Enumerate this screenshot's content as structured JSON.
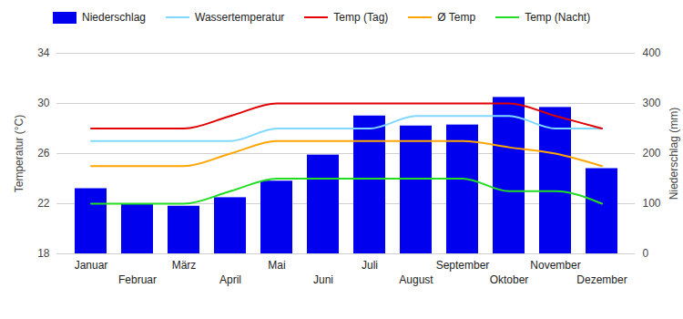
{
  "chart_data": {
    "type": "combo",
    "categories": [
      "Januar",
      "Februar",
      "März",
      "April",
      "Mai",
      "Juni",
      "Juli",
      "August",
      "September",
      "Oktober",
      "November",
      "Dezember"
    ],
    "series": [
      {
        "name": "Niederschlag",
        "type": "bar",
        "axis": "y2",
        "color": "#0000ee",
        "values": [
          130,
          100,
          95,
          112,
          145,
          197,
          275,
          255,
          257,
          312,
          292,
          170
        ]
      },
      {
        "name": "Wassertemperatur",
        "type": "line",
        "color": "#80d8ff",
        "values": [
          27,
          27,
          27,
          27,
          28,
          28,
          28,
          29,
          29,
          29,
          28,
          28
        ]
      },
      {
        "name": "Temp (Tag)",
        "type": "line",
        "color": "#e00000",
        "values": [
          28,
          28,
          28,
          29,
          30,
          30,
          30,
          30,
          30,
          30,
          29,
          28
        ]
      },
      {
        "name": "Ø Temp",
        "type": "line",
        "color": "#ffa500",
        "values": [
          25,
          25,
          25,
          26,
          27,
          27,
          27,
          27,
          27,
          26.5,
          26,
          25
        ]
      },
      {
        "name": "Temp (Nacht)",
        "type": "line",
        "color": "#22dd22",
        "values": [
          22,
          22,
          22,
          23,
          24,
          24,
          24,
          24,
          24,
          23,
          23,
          22
        ]
      }
    ],
    "ylabel": "Temperatur (°C)",
    "y2label": "Niederschlag (mm)",
    "ylim": [
      18,
      34
    ],
    "yticks": [
      18,
      22,
      26,
      30,
      34
    ],
    "y2lim": [
      0,
      400
    ],
    "y2ticks": [
      0,
      100,
      200,
      300,
      400
    ],
    "grid": true,
    "legend": "top"
  }
}
